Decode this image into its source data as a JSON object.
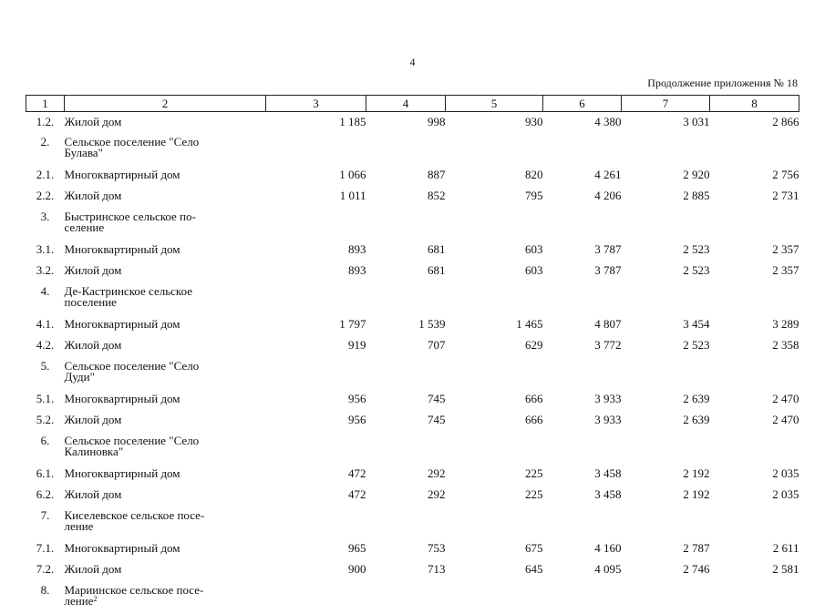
{
  "page_number": "4",
  "continuation_note": "Продолжение приложения № 18",
  "headers": [
    "1",
    "2",
    "3",
    "4",
    "5",
    "6",
    "7",
    "8"
  ],
  "rows": [
    {
      "num": "1.2.",
      "name": "Жилой дом",
      "v3": "1 185",
      "v4": "998",
      "v5": "930",
      "v6": "4 380",
      "v7": "3 031",
      "v8": "2 866"
    },
    {
      "num": "2.",
      "name": "Сельское поселение \"Село Булава\"",
      "lines": [
        "Сельское поселение \"Село",
        "Булава\""
      ]
    },
    {
      "num": "2.1.",
      "name": "Многоквартирный дом",
      "v3": "1 066",
      "v4": "887",
      "v5": "820",
      "v6": "4 261",
      "v7": "2 920",
      "v8": "2 756"
    },
    {
      "num": "2.2.",
      "name": "Жилой дом",
      "v3": "1 011",
      "v4": "852",
      "v5": "795",
      "v6": "4 206",
      "v7": "2 885",
      "v8": "2 731"
    },
    {
      "num": "3.",
      "name": "Быстринское сельское поселение",
      "lines": [
        "Быстринское сельское по-",
        "селение"
      ]
    },
    {
      "num": "3.1.",
      "name": "Многоквартирный дом",
      "v3": "893",
      "v4": "681",
      "v5": "603",
      "v6": "3 787",
      "v7": "2 523",
      "v8": "2 357"
    },
    {
      "num": "3.2.",
      "name": "Жилой дом",
      "v3": "893",
      "v4": "681",
      "v5": "603",
      "v6": "3 787",
      "v7": "2 523",
      "v8": "2 357"
    },
    {
      "num": "4.",
      "name": "Де-Кастринское сельское поселение",
      "lines": [
        "Де-Кастринское сельское",
        "поселение"
      ]
    },
    {
      "num": "4.1.",
      "name": "Многоквартирный дом",
      "v3": "1 797",
      "v4": "1 539",
      "v5": "1 465",
      "v6": "4 807",
      "v7": "3 454",
      "v8": "3 289"
    },
    {
      "num": "4.2.",
      "name": "Жилой дом",
      "v3": "919",
      "v4": "707",
      "v5": "629",
      "v6": "3 772",
      "v7": "2 523",
      "v8": "2 358"
    },
    {
      "num": "5.",
      "name": "Сельское поселение \"Село Дуди\"",
      "lines": [
        "Сельское поселение \"Село",
        "Дуди\""
      ]
    },
    {
      "num": "5.1.",
      "name": "Многоквартирный дом",
      "v3": "956",
      "v4": "745",
      "v5": "666",
      "v6": "3 933",
      "v7": "2 639",
      "v8": "2 470"
    },
    {
      "num": "5.2.",
      "name": "Жилой дом",
      "v3": "956",
      "v4": "745",
      "v5": "666",
      "v6": "3 933",
      "v7": "2 639",
      "v8": "2 470"
    },
    {
      "num": "6.",
      "name": "Сельское поселение \"Село Калиновка\"",
      "lines": [
        "Сельское поселение \"Село",
        "Калиновка\""
      ]
    },
    {
      "num": "6.1.",
      "name": "Многоквартирный дом",
      "v3": "472",
      "v4": "292",
      "v5": "225",
      "v6": "3 458",
      "v7": "2 192",
      "v8": "2 035"
    },
    {
      "num": "6.2.",
      "name": "Жилой дом",
      "v3": "472",
      "v4": "292",
      "v5": "225",
      "v6": "3 458",
      "v7": "2 192",
      "v8": "2 035"
    },
    {
      "num": "7.",
      "name": "Киселевское сельское поселение",
      "lines": [
        "Киселевское сельское посе-",
        "ление"
      ]
    },
    {
      "num": "7.1.",
      "name": "Многоквартирный дом",
      "v3": "965",
      "v4": "753",
      "v5": "675",
      "v6": "4 160",
      "v7": "2 787",
      "v8": "2 611"
    },
    {
      "num": "7.2.",
      "name": "Жилой дом",
      "v3": "900",
      "v4": "713",
      "v5": "645",
      "v6": "4 095",
      "v7": "2 746",
      "v8": "2 581"
    },
    {
      "num": "8.",
      "name": "Мариинское сельское поселение",
      "lines": [
        "Мариинское сельское посе-",
        "ление"
      ],
      "footnote": "2"
    }
  ]
}
